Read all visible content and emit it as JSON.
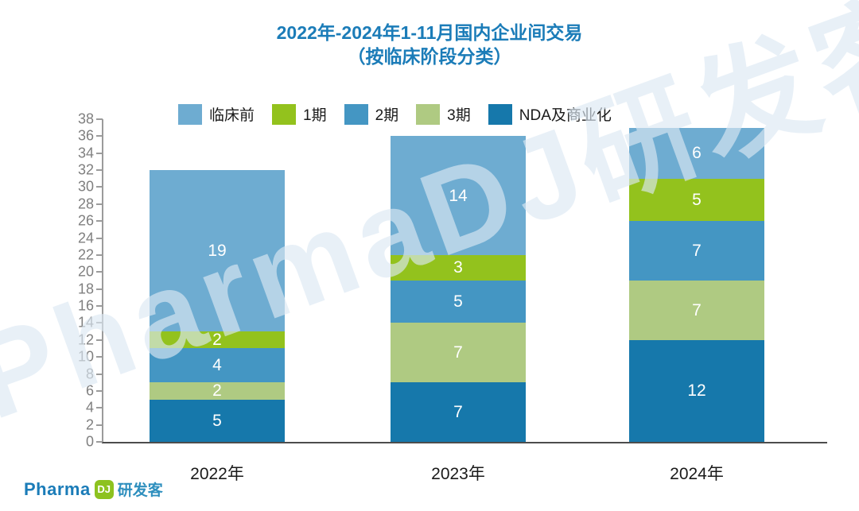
{
  "title": {
    "line1": "2022年-2024年1-11月国内企业间交易",
    "line2": "（按临床阶段分类）"
  },
  "watermark": {
    "text": "PharmaDJ研发客"
  },
  "footer_logo": {
    "pharma": "Pharma",
    "dj": "DJ",
    "yanfake": "研发客"
  },
  "colors": {
    "title": "#1b7cb8",
    "axis_label": "#7f7f7f",
    "preclinical": "#6eacd1",
    "phase1": "#93c21d",
    "phase2": "#4496c3",
    "phase3": "#afca82",
    "nda": "#1678ab"
  },
  "legend": {
    "items": [
      {
        "label": "临床前",
        "color": "#6eacd1"
      },
      {
        "label": "1期",
        "color": "#93c21d"
      },
      {
        "label": "2期",
        "color": "#4496c3"
      },
      {
        "label": "3期",
        "color": "#afca82"
      },
      {
        "label": "NDA及商业化",
        "color": "#1678ab"
      }
    ]
  },
  "chart_data": {
    "type": "bar",
    "stacked": true,
    "title": "2022年-2024年1-11月国内企业间交易（按临床阶段分类）",
    "categories": [
      "2022年",
      "2023年",
      "2024年"
    ],
    "series": [
      {
        "name": "NDA及商业化",
        "color": "#1678ab",
        "values": [
          5,
          7,
          12
        ]
      },
      {
        "name": "3期",
        "color": "#afca82",
        "values": [
          2,
          7,
          7
        ]
      },
      {
        "name": "2期",
        "color": "#4496c3",
        "values": [
          4,
          5,
          7
        ]
      },
      {
        "name": "1期",
        "color": "#93c21d",
        "values": [
          2,
          3,
          5
        ]
      },
      {
        "name": "临床前",
        "color": "#6eacd1",
        "values": [
          19,
          14,
          6
        ]
      }
    ],
    "totals": [
      32,
      36,
      37
    ],
    "ylim": [
      0,
      38
    ],
    "ytick_step": 2,
    "legend_position": "top",
    "grid": false
  }
}
